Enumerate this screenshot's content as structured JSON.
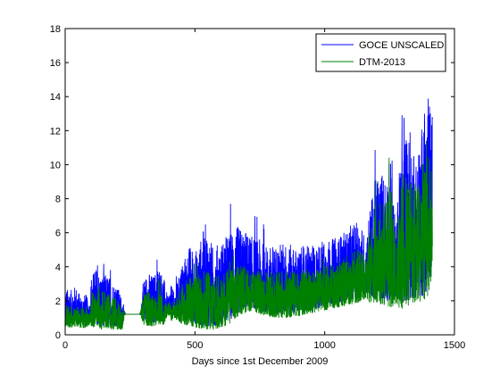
{
  "chart_data": {
    "type": "line",
    "title": "",
    "xlabel": "Days since 1st December 2009",
    "ylabel": "",
    "xlim": [
      0,
      1500
    ],
    "ylim": [
      0,
      18
    ],
    "xticks": [
      0,
      500,
      1000,
      1500
    ],
    "yticks": [
      0,
      2,
      4,
      6,
      8,
      10,
      12,
      14,
      16,
      18
    ],
    "legend_location": "top-right",
    "series": [
      {
        "name": "GOCE UNSCALED",
        "color": "#0000ff",
        "envelope_days": [
          0,
          20,
          40,
          60,
          80,
          95,
          100,
          120,
          140,
          160,
          180,
          200,
          220,
          230,
          290,
          300,
          320,
          340,
          360,
          380,
          395,
          410,
          420,
          450,
          480,
          510,
          540,
          570,
          600,
          630,
          660,
          690,
          720,
          750,
          780,
          810,
          840,
          870,
          900,
          930,
          960,
          990,
          1020,
          1050,
          1080,
          1110,
          1140,
          1160,
          1170,
          1200,
          1230,
          1260,
          1275,
          1285,
          1300,
          1320,
          1340,
          1360,
          1380,
          1400,
          1415
        ],
        "envelope_low": [
          0.8,
          0.9,
          0.8,
          0.9,
          0.7,
          0.9,
          0.7,
          0.6,
          0.5,
          0.6,
          0.5,
          0.5,
          0.4,
          1.2,
          1.2,
          0.8,
          0.8,
          0.7,
          0.8,
          0.9,
          1.2,
          1.0,
          1.2,
          0.9,
          0.8,
          0.6,
          0.5,
          0.5,
          0.6,
          0.8,
          1.2,
          1.5,
          1.6,
          1.4,
          1.3,
          1.2,
          1.2,
          1.2,
          1.3,
          1.4,
          1.5,
          1.6,
          1.8,
          1.9,
          2.0,
          2.1,
          2.2,
          2.5,
          2.2,
          2.2,
          2.0,
          2.0,
          2.2,
          2.0,
          1.8,
          2.0,
          2.2,
          2.2,
          2.3,
          2.5,
          4.2
        ],
        "envelope_high": [
          2.8,
          2.6,
          2.9,
          2.3,
          2.4,
          1.8,
          3.5,
          4.0,
          3.5,
          3.6,
          3.3,
          2.9,
          2.2,
          1.3,
          1.3,
          3.3,
          3.7,
          3.5,
          4.2,
          3.4,
          2.2,
          3.0,
          2.4,
          4.2,
          5.3,
          5.0,
          6.6,
          5.2,
          5.5,
          6.0,
          6.4,
          6.2,
          5.8,
          5.6,
          5.2,
          5.3,
          5.5,
          5.3,
          5.0,
          5.4,
          5.2,
          5.6,
          5.6,
          5.8,
          6.1,
          6.6,
          6.6,
          5.5,
          7.2,
          9.6,
          9.8,
          10.5,
          6.0,
          9.2,
          13.8,
          12.5,
          11.5,
          10.8,
          13.0,
          14.0,
          13.0
        ]
      },
      {
        "name": "DTM-2013",
        "color": "#008000",
        "envelope_days": [
          0,
          20,
          40,
          60,
          80,
          95,
          100,
          120,
          140,
          160,
          180,
          200,
          220,
          230,
          290,
          300,
          320,
          340,
          360,
          380,
          395,
          410,
          420,
          450,
          480,
          510,
          540,
          570,
          600,
          630,
          660,
          690,
          720,
          750,
          780,
          810,
          840,
          870,
          900,
          930,
          960,
          990,
          1020,
          1050,
          1080,
          1110,
          1140,
          1160,
          1170,
          1200,
          1230,
          1260,
          1275,
          1285,
          1300,
          1320,
          1340,
          1360,
          1380,
          1400,
          1415
        ],
        "envelope_low": [
          0.5,
          0.4,
          0.5,
          0.4,
          0.4,
          0.6,
          0.5,
          0.4,
          0.3,
          0.4,
          0.3,
          0.3,
          0.3,
          1.2,
          1.2,
          0.6,
          0.5,
          0.5,
          0.6,
          0.6,
          1.2,
          0.8,
          1.0,
          0.6,
          0.5,
          0.4,
          0.3,
          0.3,
          0.4,
          0.6,
          1.0,
          1.3,
          1.4,
          1.2,
          1.1,
          1.0,
          1.0,
          1.0,
          1.1,
          1.2,
          1.3,
          1.4,
          1.5,
          1.6,
          1.7,
          1.8,
          1.9,
          2.2,
          1.9,
          1.9,
          1.7,
          1.6,
          1.9,
          1.6,
          1.4,
          1.6,
          1.8,
          1.8,
          2.0,
          2.2,
          3.8
        ],
        "envelope_high": [
          1.8,
          1.7,
          1.8,
          1.6,
          1.7,
          1.4,
          2.5,
          2.8,
          2.6,
          2.6,
          2.4,
          2.1,
          1.8,
          1.3,
          1.3,
          2.4,
          2.6,
          2.5,
          2.8,
          2.4,
          1.8,
          2.2,
          1.9,
          3.0,
          3.4,
          3.5,
          3.8,
          3.5,
          3.6,
          3.9,
          4.0,
          4.1,
          3.9,
          3.8,
          3.7,
          3.8,
          3.9,
          3.8,
          3.7,
          3.9,
          3.8,
          4.0,
          4.1,
          4.3,
          4.6,
          5.0,
          5.2,
          4.5,
          6.0,
          8.0,
          8.2,
          8.8,
          5.0,
          7.5,
          9.5,
          9.8,
          9.5,
          9.0,
          10.2,
          10.8,
          10.5
        ]
      }
    ]
  }
}
